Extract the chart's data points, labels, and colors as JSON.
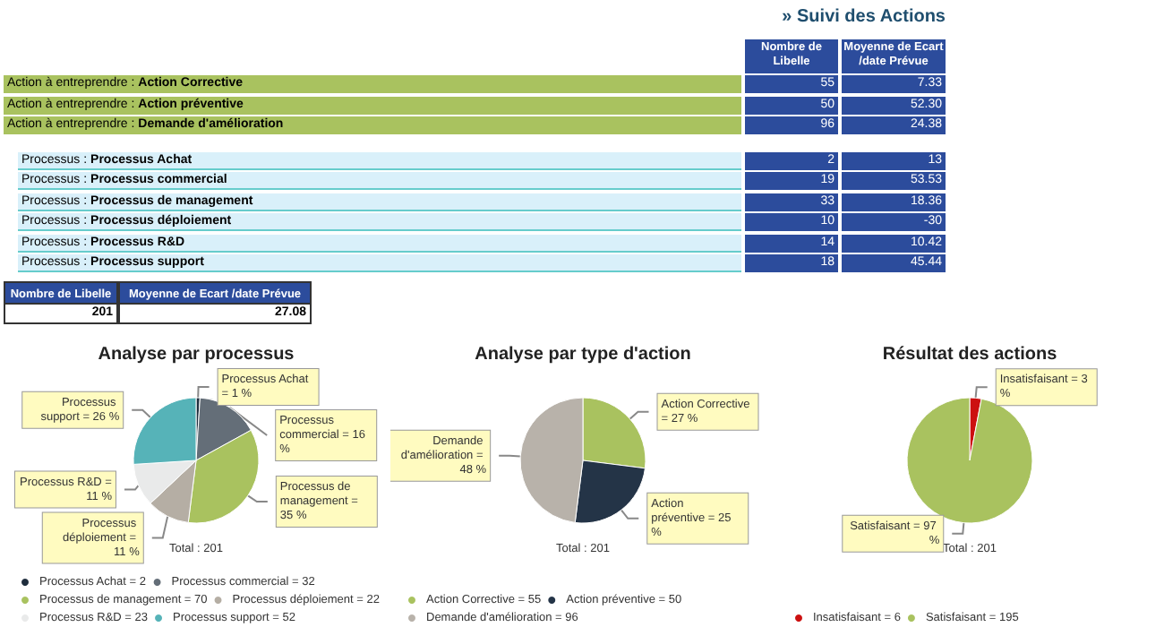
{
  "chart_data": [
    {
      "type": "other",
      "title": "» Suivi des Actions",
      "data_labels": true,
      "categories": [
        "Action à entreprendre : Action Corrective",
        "Action à entreprendre : Action préventive",
        "Action à entreprendre : Demande d'amélioration",
        "Processus : Processus Achat",
        "Processus : Processus commercial",
        "Processus : Processus de management",
        "Processus : Processus déploiement",
        "Processus : Processus R&D",
        "Processus : Processus support"
      ],
      "colors": [
        "#a9c25f",
        "#a9c25f",
        "#a9c25f",
        "#d9f0fa",
        "#d9f0fa",
        "#d9f0fa",
        "#d9f0fa",
        "#d9f0fa",
        "#d9f0fa"
      ],
      "series": [
        {
          "name": "Nombre de Libelle",
          "values": [
            55,
            50,
            96,
            2,
            19,
            33,
            10,
            14,
            18
          ]
        },
        {
          "name": "Moyenne de Ecart /date Prévue",
          "values": [
            7.33,
            52.3,
            24.38,
            13,
            53.53,
            18.36,
            -30,
            10.42,
            45.44
          ],
          "value_labels": [
            "7.33",
            "52.30",
            "24.38",
            "13",
            "53.53",
            "18.36",
            "-30",
            "10.42",
            "45.44"
          ]
        }
      ]
    },
    {
      "type": "other",
      "categories": [
        null
      ],
      "data_labels": true,
      "series": [
        {
          "name": "Nombre de Libelle",
          "values": [
            201
          ]
        },
        {
          "name": "Moyenne de Ecart /date Prévue",
          "values": [
            27.08
          ]
        }
      ]
    },
    {
      "type": "pie",
      "title": "Analyse par processus",
      "legend": "bottom",
      "annotations": [
        "Total : 201"
      ],
      "categories": [
        "Processus Achat = 2",
        "Processus commercial = 32",
        "Processus de management = 70",
        "Processus déploiement = 22",
        "Processus R&D = 23",
        "Processus support = 52"
      ],
      "values": [
        1,
        16,
        35,
        11,
        11,
        26
      ],
      "colors": [
        "#1f2d3d",
        "#646e78",
        "#a9c25f",
        "#b5aea4",
        "#e9eaea",
        "#56b3b8"
      ],
      "value_labels": [
        "Processus Achat = 1 %",
        "Processus commercial = 16 %",
        "Processus de management = 35 %",
        "Processus déploiement = 11 %",
        "Processus R&D = 11 %",
        "Processus support = 26 %"
      ]
    },
    {
      "type": "pie",
      "title": "Analyse par type d'action",
      "legend": "bottom",
      "annotations": [
        "Total : 201"
      ],
      "categories": [
        "Action Corrective = 55",
        "Action préventive = 50",
        "Demande d'amélioration = 96"
      ],
      "values": [
        27,
        25,
        48
      ],
      "colors": [
        "#a9c25f",
        "#243447",
        "#b8b2aa"
      ],
      "value_labels": [
        "Action Corrective = 27 %",
        "Action préventive = 25 %",
        "Demande d'amélioration = 48 %"
      ]
    },
    {
      "type": "pie",
      "title": "Résultat des actions",
      "legend": "bottom",
      "annotations": [
        "Total : 201"
      ],
      "categories": [
        "Insatisfaisant = 6",
        "Satisfaisant = 195"
      ],
      "values": [
        3,
        97
      ],
      "colors": [
        "#cc1010",
        "#a9c25f"
      ],
      "value_labels": [
        "Insatisfaisant = 3 %",
        "Satisfaisant = 97 %"
      ]
    }
  ]
}
